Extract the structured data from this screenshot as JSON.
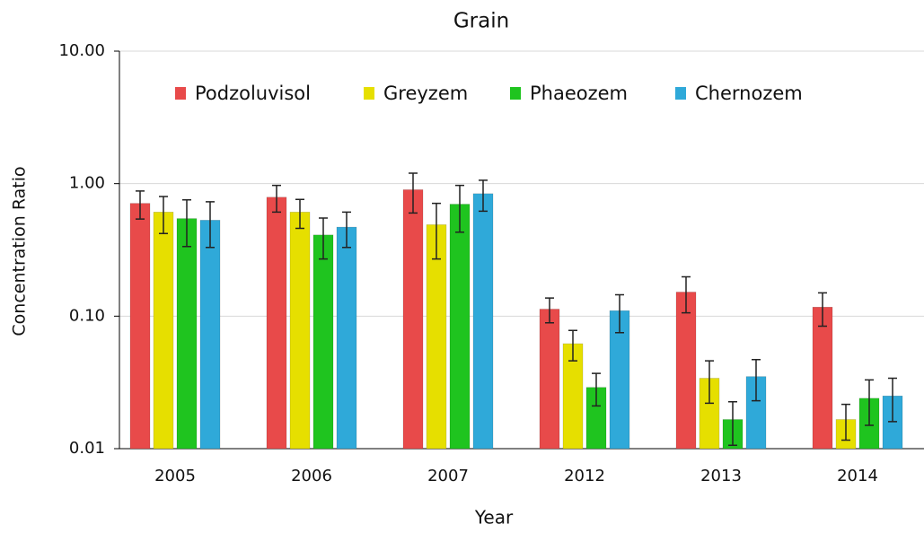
{
  "chart_data": {
    "type": "bar",
    "title": "Grain",
    "x_label": "Year",
    "y_label": "Concentration Ratio",
    "yscale": "log",
    "grid": true,
    "legend": "top",
    "categories": [
      "2005",
      "2006",
      "2007",
      "2012",
      "2013",
      "2014"
    ],
    "ylim": [
      0.01,
      10
    ],
    "yticks": [
      {
        "value": 0.01,
        "label": "0.01"
      },
      {
        "value": 0.1,
        "label": "0.10"
      },
      {
        "value": 1,
        "label": "1.00"
      },
      {
        "value": 10,
        "label": "10.00"
      }
    ],
    "series": [
      {
        "name": "Podzoluvisol",
        "color": "#e84a4a",
        "values": [
          0.71,
          0.79,
          0.9,
          0.113,
          0.152,
          0.117
        ],
        "errors": [
          0.17,
          0.18,
          0.3,
          0.024,
          0.046,
          0.033
        ]
      },
      {
        "name": "Greyzem",
        "color": "#e6df00",
        "values": [
          0.61,
          0.61,
          0.49,
          0.062,
          0.034,
          0.0166
        ],
        "errors": [
          0.19,
          0.15,
          0.22,
          0.016,
          0.012,
          0.005
        ]
      },
      {
        "name": "Phaeozem",
        "color": "#1fc41f",
        "values": [
          0.545,
          0.41,
          0.7,
          0.029,
          0.0166,
          0.024
        ],
        "errors": [
          0.21,
          0.14,
          0.27,
          0.008,
          0.006,
          0.009
        ]
      },
      {
        "name": "Chernozem",
        "color": "#2fa9d9",
        "values": [
          0.53,
          0.47,
          0.84,
          0.11,
          0.035,
          0.025
        ],
        "errors": [
          0.2,
          0.14,
          0.22,
          0.035,
          0.012,
          0.009
        ]
      }
    ]
  }
}
